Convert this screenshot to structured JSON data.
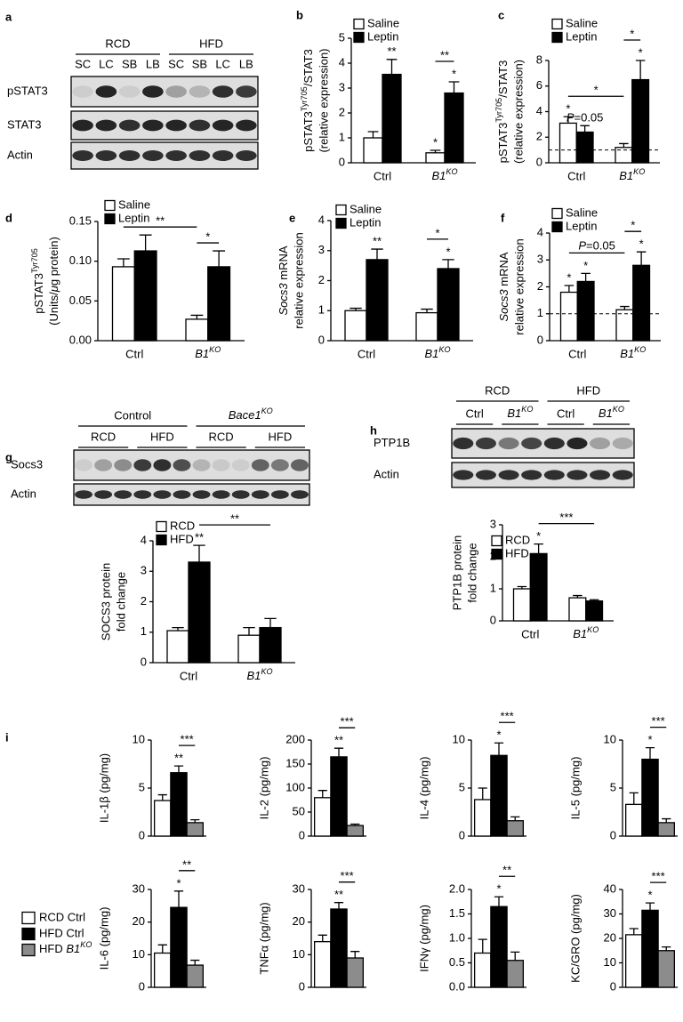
{
  "panel_labels": [
    "a",
    "b",
    "c",
    "d",
    "e",
    "f",
    "g",
    "h",
    "i"
  ],
  "blots": [
    {
      "groups": [
        "RCD",
        "HFD"
      ],
      "lanes": [
        "SC",
        "LC",
        "SB",
        "LB",
        "SC",
        "SB",
        "LC",
        "LB"
      ],
      "rows": [
        "pSTAT3",
        "STAT3",
        "Actin"
      ]
    },
    {
      "groups": [
        "Control",
        [
          {
            "text": "Bace1",
            "italic": true
          },
          {
            "text": "KO",
            "italic": true,
            "sup": true
          }
        ]
      ],
      "subgroups": [
        "RCD",
        "HFD",
        "RCD",
        "HFD"
      ],
      "rows": [
        "Socs3",
        "Actin"
      ]
    },
    {
      "groups": [
        "RCD",
        "HFD"
      ],
      "subgroups": [
        "Ctrl",
        [
          {
            "text": "B1",
            "italic": true
          },
          {
            "text": "KO",
            "italic": true,
            "sup": true
          }
        ],
        "Ctrl",
        [
          {
            "text": "B1",
            "italic": true
          },
          {
            "text": "KO",
            "italic": true,
            "sup": true
          }
        ]
      ],
      "rows": [
        "PTP1B",
        "Actin"
      ]
    }
  ],
  "legend_i": {
    "entries": [
      {
        "name": "RCD Ctrl",
        "color": "#ffffff"
      },
      {
        "name": "HFD Ctrl",
        "color": "#000000"
      },
      {
        "name": [
          {
            "text": "HFD "
          },
          {
            "text": "B1",
            "italic": true
          },
          {
            "text": "KO",
            "italic": true,
            "sup": true
          }
        ],
        "color": "#8c8c8c"
      }
    ]
  },
  "chart_data": [
    {
      "type": "bar",
      "ylabel": [
        [
          {
            "text": "pSTAT3"
          },
          {
            "text": "Tyr705",
            "sup": true
          },
          {
            "text": "/STAT3"
          }
        ],
        "(relative expression)"
      ],
      "categories": [
        "Ctrl",
        [
          {
            "text": "B1",
            "italic": true
          },
          {
            "text": "KO",
            "italic": true,
            "sup": true
          }
        ]
      ],
      "series": [
        {
          "name": "Saline",
          "color": "#ffffff",
          "values": [
            1.0,
            0.4
          ],
          "errors": [
            0.25,
            0.1
          ]
        },
        {
          "name": "Leptin",
          "color": "#000000",
          "values": [
            3.55,
            2.8
          ],
          "errors": [
            0.6,
            0.45
          ]
        }
      ],
      "ylim": [
        0,
        5
      ],
      "yticks": [
        0,
        1,
        2,
        3,
        4,
        5
      ],
      "stars": [
        {
          "label": "**",
          "at": [
            1,
            0
          ]
        },
        {
          "label": "*",
          "at": [
            0,
            1
          ]
        },
        {
          "label": "*",
          "at": [
            1,
            1
          ]
        }
      ],
      "brackets": [
        {
          "label": "**",
          "from": [
            0,
            1
          ],
          "to": [
            1,
            1
          ]
        }
      ]
    },
    {
      "type": "bar",
      "ylabel": [
        [
          {
            "text": "pSTAT3"
          },
          {
            "text": "Tyr705",
            "sup": true
          },
          {
            "text": "/STAT3"
          }
        ],
        "(relative expression)"
      ],
      "categories": [
        "Ctrl",
        [
          {
            "text": "B1",
            "italic": true
          },
          {
            "text": "KO",
            "italic": true,
            "sup": true
          }
        ]
      ],
      "series": [
        {
          "name": "Saline",
          "color": "#ffffff",
          "values": [
            3.1,
            1.2
          ],
          "errors": [
            0.5,
            0.3
          ]
        },
        {
          "name": "Leptin",
          "color": "#000000",
          "values": [
            2.4,
            6.5
          ],
          "errors": [
            0.5,
            1.5
          ]
        }
      ],
      "ylim": [
        0,
        8
      ],
      "yticks": [
        0,
        2,
        4,
        6,
        8
      ],
      "reference_line": 1,
      "stars": [
        {
          "label": "*",
          "at": [
            0,
            0
          ]
        },
        {
          "label": [
            {
              "text": "P",
              "italic": true
            },
            {
              "text": "=0.05"
            }
          ],
          "at": [
            1,
            0
          ]
        },
        {
          "label": "*",
          "at": [
            1,
            1
          ]
        }
      ],
      "brackets": [
        {
          "label": "*",
          "from": [
            0,
            0
          ],
          "to": [
            0,
            1
          ]
        },
        {
          "label": "*",
          "from": [
            0,
            1
          ],
          "to": [
            1,
            1
          ]
        }
      ]
    },
    {
      "type": "bar",
      "ylabel": [
        [
          {
            "text": "pSTAT3"
          },
          {
            "text": "Tyr705",
            "sup": true
          }
        ],
        [
          {
            "text": "(Units/"
          },
          {
            "text": "μ",
            "italic": true
          },
          {
            "text": "g protein)"
          }
        ]
      ],
      "categories": [
        "Ctrl",
        [
          {
            "text": "B1",
            "italic": true
          },
          {
            "text": "KO",
            "italic": true,
            "sup": true
          }
        ]
      ],
      "series": [
        {
          "name": "Saline",
          "color": "#ffffff",
          "values": [
            0.093,
            0.027
          ],
          "errors": [
            0.01,
            0.005
          ]
        },
        {
          "name": "Leptin",
          "color": "#000000",
          "values": [
            0.113,
            0.093
          ],
          "errors": [
            0.02,
            0.02
          ]
        }
      ],
      "ylim": [
        0,
        0.15
      ],
      "yticks": [
        {
          "value": 0,
          "label": "0.00"
        },
        {
          "value": 0.05,
          "label": "0.05"
        },
        {
          "value": 0.1,
          "label": "0.10"
        },
        {
          "value": 0.15,
          "label": "0.15"
        }
      ],
      "stars": [],
      "brackets": [
        {
          "label": "**",
          "from": [
            0,
            0
          ],
          "to": [
            0,
            1
          ]
        },
        {
          "label": "*",
          "from": [
            0,
            1
          ],
          "to": [
            1,
            1
          ]
        }
      ]
    },
    {
      "type": "bar",
      "ylabel": [
        [
          {
            "text": "Socs3",
            "italic": true
          },
          {
            "text": " mRNA"
          }
        ],
        "relative expression"
      ],
      "categories": [
        "Ctrl",
        [
          {
            "text": "B1",
            "italic": true
          },
          {
            "text": "KO",
            "italic": true,
            "sup": true
          }
        ]
      ],
      "series": [
        {
          "name": "Saline",
          "color": "#ffffff",
          "values": [
            1.0,
            0.93
          ],
          "errors": [
            0.08,
            0.12
          ]
        },
        {
          "name": "Leptin",
          "color": "#000000",
          "values": [
            2.7,
            2.4
          ],
          "errors": [
            0.35,
            0.3
          ]
        }
      ],
      "ylim": [
        0,
        4
      ],
      "yticks": [
        0,
        1,
        2,
        3,
        4
      ],
      "stars": [
        {
          "label": "**",
          "at": [
            1,
            0
          ]
        },
        {
          "label": "*",
          "at": [
            1,
            1
          ]
        }
      ],
      "brackets": [
        {
          "label": "*",
          "from": [
            0,
            1
          ],
          "to": [
            1,
            1
          ]
        }
      ]
    },
    {
      "type": "bar",
      "ylabel": [
        [
          {
            "text": "Socs3",
            "italic": true
          },
          {
            "text": " mRNA"
          }
        ],
        "relative expression"
      ],
      "categories": [
        "Ctrl",
        [
          {
            "text": "B1",
            "italic": true
          },
          {
            "text": "KO",
            "italic": true,
            "sup": true
          }
        ]
      ],
      "series": [
        {
          "name": "Saline",
          "color": "#ffffff",
          "values": [
            1.8,
            1.15
          ],
          "errors": [
            0.25,
            0.12
          ]
        },
        {
          "name": "Leptin",
          "color": "#000000",
          "values": [
            2.2,
            2.8
          ],
          "errors": [
            0.3,
            0.5
          ]
        }
      ],
      "ylim": [
        0,
        4
      ],
      "yticks": [
        0,
        1,
        2,
        3,
        4
      ],
      "reference_line": 1,
      "stars": [
        {
          "label": "*",
          "at": [
            0,
            0
          ]
        },
        {
          "label": "*",
          "at": [
            1,
            0
          ]
        },
        {
          "label": "*",
          "at": [
            1,
            1
          ]
        }
      ],
      "brackets": [
        {
          "label": [
            {
              "text": "P",
              "italic": true
            },
            {
              "text": "=0.05"
            }
          ],
          "from": [
            0,
            0
          ],
          "to": [
            0,
            1
          ]
        },
        {
          "label": "*",
          "from": [
            0,
            1
          ],
          "to": [
            1,
            1
          ]
        }
      ]
    },
    {
      "type": "bar",
      "ylabel": [
        "SOCS3 protein",
        "fold change"
      ],
      "categories": [
        "Ctrl",
        [
          {
            "text": "B1",
            "italic": true
          },
          {
            "text": "KO",
            "italic": true,
            "sup": true
          }
        ]
      ],
      "series": [
        {
          "name": "RCD",
          "color": "#ffffff",
          "values": [
            1.05,
            0.9
          ],
          "errors": [
            0.1,
            0.25
          ]
        },
        {
          "name": "HFD",
          "color": "#000000",
          "values": [
            3.3,
            1.15
          ],
          "errors": [
            0.55,
            0.3
          ]
        }
      ],
      "ylim": [
        0,
        4
      ],
      "yticks": [
        0,
        1,
        2,
        3,
        4
      ],
      "stars": [
        {
          "label": "**",
          "at": [
            1,
            0
          ]
        }
      ],
      "brackets": [
        {
          "label": "**",
          "from": [
            1,
            0
          ],
          "to": [
            1,
            1
          ]
        }
      ]
    },
    {
      "type": "bar",
      "ylabel": [
        "PTP1B protein",
        "fold change"
      ],
      "categories": [
        "Ctrl",
        [
          {
            "text": "B1",
            "italic": true
          },
          {
            "text": "KO",
            "italic": true,
            "sup": true
          }
        ]
      ],
      "series": [
        {
          "name": "RCD",
          "color": "#ffffff",
          "values": [
            1.0,
            0.72
          ],
          "errors": [
            0.07,
            0.07
          ]
        },
        {
          "name": "HFD",
          "color": "#000000",
          "values": [
            2.1,
            0.62
          ],
          "errors": [
            0.3,
            0.04
          ]
        }
      ],
      "ylim": [
        0,
        3
      ],
      "yticks": [
        0,
        1,
        2,
        3
      ],
      "stars": [
        {
          "label": "*",
          "at": [
            1,
            0
          ]
        }
      ],
      "brackets": [
        {
          "label": "***",
          "from": [
            1,
            0
          ],
          "to": [
            1,
            1
          ]
        }
      ]
    },
    {
      "type": "bar",
      "ylabel": "IL-1β (pg/mg)",
      "values": [
        3.7,
        6.6,
        1.4
      ],
      "errors": [
        0.6,
        0.7,
        0.3
      ],
      "colors": [
        "#ffffff",
        "#000000",
        "#8c8c8c"
      ],
      "ylim": [
        0,
        10
      ],
      "yticks": [
        0,
        5,
        10
      ],
      "stars": [
        {
          "label": "**",
          "at": [
            1
          ]
        }
      ],
      "brackets": [
        {
          "label": "***",
          "from": [
            1
          ],
          "to": [
            2
          ]
        }
      ]
    },
    {
      "type": "bar",
      "ylabel": "IL-2 (pg/mg)",
      "values": [
        80,
        165,
        22
      ],
      "errors": [
        15,
        18,
        3
      ],
      "colors": [
        "#ffffff",
        "#000000",
        "#8c8c8c"
      ],
      "ylim": [
        0,
        200
      ],
      "yticks": [
        0,
        50,
        100,
        150,
        200
      ],
      "stars": [
        {
          "label": "**",
          "at": [
            1
          ]
        }
      ],
      "brackets": [
        {
          "label": "***",
          "from": [
            1
          ],
          "to": [
            2
          ]
        }
      ]
    },
    {
      "type": "bar",
      "ylabel": "IL-4 (pg/mg)",
      "values": [
        3.8,
        8.4,
        1.6
      ],
      "errors": [
        1.2,
        1.3,
        0.4
      ],
      "colors": [
        "#ffffff",
        "#000000",
        "#8c8c8c"
      ],
      "ylim": [
        0,
        10
      ],
      "yticks": [
        0,
        5,
        10
      ],
      "stars": [
        {
          "label": "*",
          "at": [
            1
          ]
        }
      ],
      "brackets": [
        {
          "label": "***",
          "from": [
            1
          ],
          "to": [
            2
          ]
        }
      ]
    },
    {
      "type": "bar",
      "ylabel": "IL-5 (pg/mg)",
      "values": [
        3.3,
        8.0,
        1.4
      ],
      "errors": [
        1.2,
        1.2,
        0.4
      ],
      "colors": [
        "#ffffff",
        "#000000",
        "#8c8c8c"
      ],
      "ylim": [
        0,
        10
      ],
      "yticks": [
        0,
        5,
        10
      ],
      "stars": [
        {
          "label": "*",
          "at": [
            1
          ]
        }
      ],
      "brackets": [
        {
          "label": "***",
          "from": [
            1
          ],
          "to": [
            2
          ]
        }
      ]
    },
    {
      "type": "bar",
      "ylabel": "IL-6 (pg/mg)",
      "values": [
        10.5,
        24.5,
        6.8
      ],
      "errors": [
        2.5,
        5,
        1.5
      ],
      "colors": [
        "#ffffff",
        "#000000",
        "#8c8c8c"
      ],
      "ylim": [
        0,
        30
      ],
      "yticks": [
        0,
        10,
        20,
        30
      ],
      "stars": [
        {
          "label": "*",
          "at": [
            1
          ]
        }
      ],
      "brackets": [
        {
          "label": "**",
          "from": [
            1
          ],
          "to": [
            2
          ]
        }
      ]
    },
    {
      "type": "bar",
      "ylabel": "TNFα (pg/mg)",
      "values": [
        14,
        24,
        9
      ],
      "errors": [
        2,
        2,
        2
      ],
      "colors": [
        "#ffffff",
        "#000000",
        "#8c8c8c"
      ],
      "ylim": [
        0,
        30
      ],
      "yticks": [
        0,
        10,
        20,
        30
      ],
      "stars": [
        {
          "label": "**",
          "at": [
            1
          ]
        }
      ],
      "brackets": [
        {
          "label": "***",
          "from": [
            1
          ],
          "to": [
            2
          ]
        }
      ]
    },
    {
      "type": "bar",
      "ylabel": "IFNγ (pg/mg)",
      "values": [
        0.7,
        1.65,
        0.55
      ],
      "errors": [
        0.28,
        0.2,
        0.17
      ],
      "colors": [
        "#ffffff",
        "#000000",
        "#8c8c8c"
      ],
      "ylim": [
        0,
        2
      ],
      "yticks": [
        {
          "value": 0,
          "label": "0.0"
        },
        {
          "value": 0.5,
          "label": "0.5"
        },
        {
          "value": 1,
          "label": "1.0"
        },
        {
          "value": 1.5,
          "label": "1.5"
        },
        {
          "value": 2,
          "label": "2.0"
        }
      ],
      "stars": [
        {
          "label": "*",
          "at": [
            1
          ]
        }
      ],
      "brackets": [
        {
          "label": "**",
          "from": [
            1
          ],
          "to": [
            2
          ]
        }
      ]
    },
    {
      "type": "bar",
      "ylabel": "KC/GRO (pg/mg)",
      "values": [
        21.5,
        31.5,
        15
      ],
      "errors": [
        2.5,
        3,
        1.5
      ],
      "colors": [
        "#ffffff",
        "#000000",
        "#8c8c8c"
      ],
      "ylim": [
        0,
        40
      ],
      "yticks": [
        0,
        10,
        20,
        30,
        40
      ],
      "stars": [
        {
          "label": "*",
          "at": [
            1
          ]
        }
      ],
      "brackets": [
        {
          "label": "***",
          "from": [
            1
          ],
          "to": [
            2
          ]
        }
      ]
    }
  ]
}
